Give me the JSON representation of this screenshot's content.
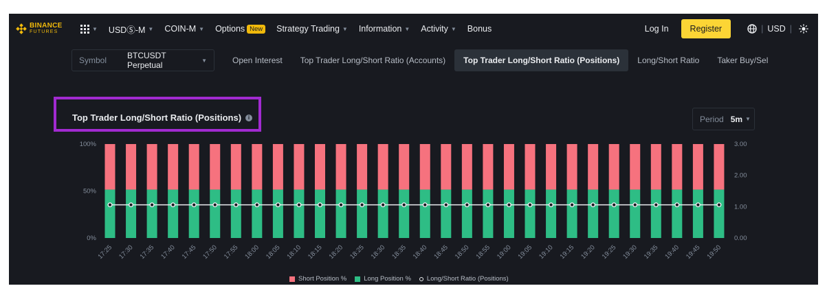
{
  "nav": {
    "brand_line1": "BINANCE",
    "brand_line2": "FUTURES",
    "items": [
      {
        "label": "USDⓈ-M",
        "caret": true
      },
      {
        "label": "COIN-M",
        "caret": true
      },
      {
        "label": "Options",
        "badge": "New"
      },
      {
        "label": "Strategy Trading",
        "caret": true
      },
      {
        "label": "Information",
        "caret": true
      },
      {
        "label": "Activity",
        "caret": true
      },
      {
        "label": "Bonus"
      }
    ],
    "login": "Log In",
    "register": "Register",
    "currency": "USD",
    "separator": "|"
  },
  "tabs": {
    "symbol_label": "Symbol",
    "symbol_value": "BTCUSDT Perpetual",
    "items": [
      {
        "label": "Open Interest",
        "active": false
      },
      {
        "label": "Top Trader Long/Short Ratio (Accounts)",
        "active": false
      },
      {
        "label": "Top Trader Long/Short Ratio (Positions)",
        "active": true
      },
      {
        "label": "Long/Short Ratio",
        "active": false
      },
      {
        "label": "Taker Buy/Sel",
        "active": false
      }
    ]
  },
  "panel": {
    "title": "Top Trader Long/Short Ratio (Positions)",
    "info_glyph": "i",
    "period_label": "Period",
    "period_value": "5m"
  },
  "colors": {
    "short": "#f6727e",
    "long": "#2ebd85",
    "ratio": "#eaecef",
    "highlight": "#a12ad0",
    "accent": "#fcd535"
  },
  "chart_data": {
    "type": "bar",
    "stacked": true,
    "categories": [
      "17:25",
      "17:30",
      "17:35",
      "17:40",
      "17:45",
      "17:50",
      "17:55",
      "18:00",
      "18:05",
      "18:10",
      "18:15",
      "18:20",
      "18:25",
      "18:30",
      "18:35",
      "18:40",
      "18:45",
      "18:50",
      "18:55",
      "19:00",
      "19:05",
      "19:10",
      "19:15",
      "19:20",
      "19:25",
      "19:30",
      "19:35",
      "19:40",
      "19:45",
      "19:50"
    ],
    "series": [
      {
        "name": "Short Position %",
        "axis": "left",
        "values": [
          48.5,
          48.5,
          48.5,
          48.5,
          48.5,
          48.5,
          48.5,
          48.5,
          48.5,
          48.5,
          48.5,
          48.5,
          48.5,
          48.5,
          48.5,
          48.5,
          48.5,
          48.5,
          48.5,
          48.5,
          48.5,
          48.5,
          48.5,
          48.5,
          48.5,
          48.5,
          48.5,
          48.5,
          48.5,
          48.5
        ]
      },
      {
        "name": "Long Position %",
        "axis": "left",
        "values": [
          51.5,
          51.5,
          51.5,
          51.5,
          51.5,
          51.5,
          51.5,
          51.5,
          51.5,
          51.5,
          51.5,
          51.5,
          51.5,
          51.5,
          51.5,
          51.5,
          51.5,
          51.5,
          51.5,
          51.5,
          51.5,
          51.5,
          51.5,
          51.5,
          51.5,
          51.5,
          51.5,
          51.5,
          51.5,
          51.5
        ]
      },
      {
        "name": "Long/Short Ratio (Positions)",
        "type": "line",
        "axis": "right",
        "values": [
          1.06,
          1.06,
          1.06,
          1.06,
          1.06,
          1.06,
          1.06,
          1.06,
          1.06,
          1.06,
          1.06,
          1.06,
          1.06,
          1.06,
          1.06,
          1.06,
          1.06,
          1.06,
          1.06,
          1.06,
          1.06,
          1.06,
          1.06,
          1.06,
          1.06,
          1.06,
          1.06,
          1.06,
          1.06,
          1.06
        ]
      }
    ],
    "y_left": {
      "ticks": [
        "0%",
        "50%",
        "100%"
      ],
      "ylim": [
        0,
        100
      ]
    },
    "y_right": {
      "ticks": [
        "0.00",
        "1.00",
        "2.00",
        "3.00"
      ],
      "ylim": [
        0,
        3
      ]
    },
    "xlabel": "",
    "ylabel": "",
    "grid": false,
    "legend": "bottom"
  }
}
